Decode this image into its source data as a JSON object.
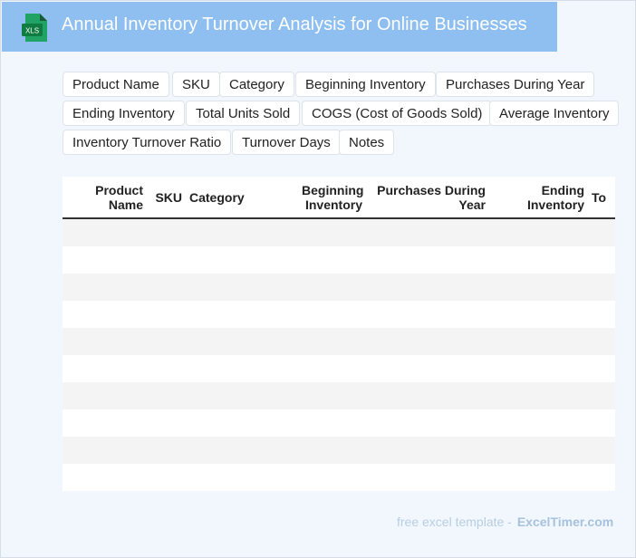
{
  "header": {
    "icon_text": "XLS",
    "title": "Annual Inventory Turnover Analysis for Online Businesses"
  },
  "tags": [
    "Product Name",
    "SKU",
    "Category",
    "Beginning Inventory",
    "Purchases During Year",
    "Ending Inventory",
    "Total Units Sold",
    "COGS (Cost of Goods Sold)",
    "Average Inventory",
    "Inventory Turnover Ratio",
    "Turnover Days",
    "Notes"
  ],
  "table": {
    "columns": [
      {
        "line1": "Product",
        "line2": "Name"
      },
      {
        "line1": "SKU",
        "line2": ""
      },
      {
        "line1": "Category",
        "line2": ""
      },
      {
        "line1": "Beginning",
        "line2": "Inventory"
      },
      {
        "line1": "Purchases During",
        "line2": "Year"
      },
      {
        "line1": "Ending",
        "line2": "Inventory"
      },
      {
        "line1": "To",
        "line2": ""
      }
    ]
  },
  "footer": {
    "lead": "free excel template -",
    "brand": "ExcelTimer.com"
  },
  "colors": {
    "header_bg": "#8ebff0",
    "page_bg": "#f2f7fd",
    "xls_icon": "#1e7145"
  }
}
